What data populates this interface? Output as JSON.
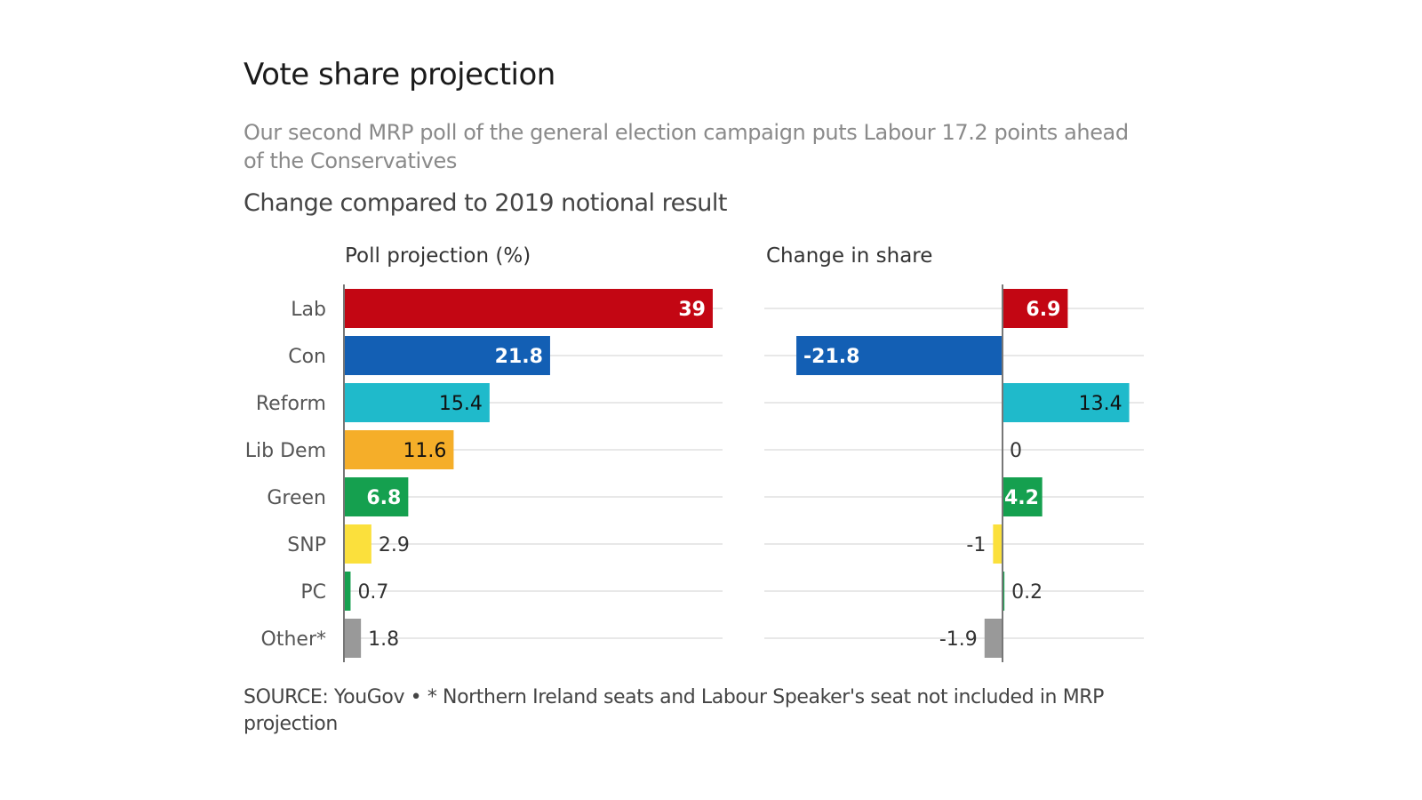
{
  "title": "Vote share projection",
  "subtitle": "Our second MRP poll of the general election campaign puts Labour 17.2 points ahead of the Conservatives",
  "note": "Change compared to 2019 notional result",
  "source": "SOURCE: YouGov • * Northern Ireland seats and Labour Speaker's seat not included in MRP projection",
  "chart_data": [
    {
      "type": "bar",
      "orientation": "horizontal",
      "title": "Poll projection (%)",
      "categories": [
        "Lab",
        "Con",
        "Reform",
        "Lib Dem",
        "Green",
        "SNP",
        "PC",
        "Other*"
      ],
      "values": [
        39,
        21.8,
        15.4,
        11.6,
        6.8,
        2.9,
        0.7,
        1.8
      ],
      "labels": [
        "39",
        "21.8",
        "15.4",
        "11.6",
        "6.8",
        "2.9",
        "0.7",
        "1.8"
      ],
      "colors": [
        "#c30613",
        "#135fb4",
        "#1fbacb",
        "#f5ae29",
        "#15a04f",
        "#fbe03c",
        "#15a04f",
        "#999999"
      ],
      "label_colors": [
        "#ffffff",
        "#ffffff",
        "#111111",
        "#111111",
        "#ffffff",
        "#333333",
        "#333333",
        "#333333"
      ],
      "xlim": [
        0,
        40
      ],
      "grid": true
    },
    {
      "type": "bar",
      "orientation": "horizontal",
      "title": "Change in share",
      "categories": [
        "Lab",
        "Con",
        "Reform",
        "Lib Dem",
        "Green",
        "SNP",
        "PC",
        "Other*"
      ],
      "values": [
        6.9,
        -21.8,
        13.4,
        0,
        4.2,
        -1,
        0.2,
        -1.9
      ],
      "labels": [
        "6.9",
        "-21.8",
        "13.4",
        "0",
        "4.2",
        "-1",
        "0.2",
        "-1.9"
      ],
      "colors": [
        "#c30613",
        "#135fb4",
        "#1fbacb",
        "#f5ae29",
        "#15a04f",
        "#fbe03c",
        "#15a04f",
        "#999999"
      ],
      "label_colors": [
        "#ffffff",
        "#ffffff",
        "#111111",
        "#333333",
        "#ffffff",
        "#333333",
        "#333333",
        "#333333"
      ],
      "xlim": [
        -25,
        15
      ],
      "grid": true
    }
  ]
}
